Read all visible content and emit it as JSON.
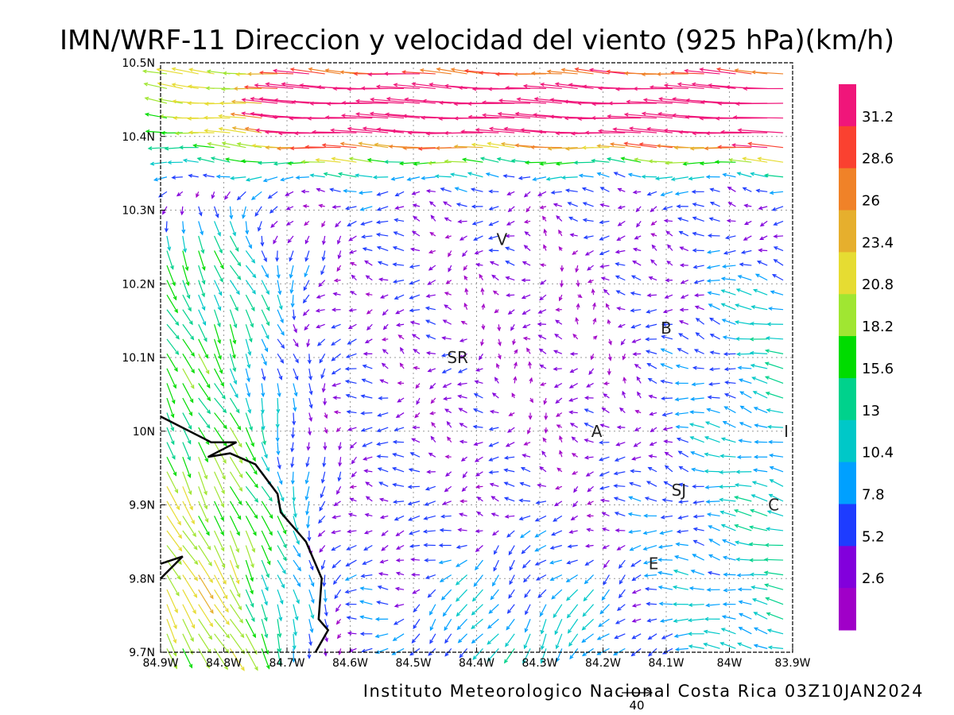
{
  "chart_data": {
    "type": "vector-field",
    "title": "IMN/WRF-11 Direccion y velocidad del viento (925 hPa)(km/h)",
    "x_ticks": [
      "84.9W",
      "84.8W",
      "84.7W",
      "84.6W",
      "84.5W",
      "84.4W",
      "84.3W",
      "84.2W",
      "84.1W",
      "84W",
      "83.9W"
    ],
    "y_ticks": [
      "10.5N",
      "10.4N",
      "10.3N",
      "10.2N",
      "10.1N",
      "10N",
      "9.9N",
      "9.8N",
      "9.7N"
    ],
    "xlim": [
      -84.9,
      -83.9
    ],
    "ylim": [
      9.7,
      10.5
    ],
    "grid": true,
    "colorbar": {
      "labels": [
        "31.2",
        "28.6",
        "26",
        "23.4",
        "20.8",
        "18.2",
        "15.6",
        "13",
        "10.4",
        "7.8",
        "5.2",
        "2.6"
      ],
      "colors": [
        "#f0167a",
        "#fa4130",
        "#f08228",
        "#e6af2d",
        "#e6dc32",
        "#a0e632",
        "#00dc00",
        "#00d28c",
        "#00c8c8",
        "#00a0ff",
        "#1e3cff",
        "#8200dc",
        "#a000c8"
      ]
    },
    "locations": [
      {
        "label": "V",
        "lon": -84.36,
        "lat": 10.26
      },
      {
        "label": "SR",
        "lon": -84.43,
        "lat": 10.1
      },
      {
        "label": "B",
        "lon": -84.1,
        "lat": 10.14
      },
      {
        "label": "A",
        "lon": -84.21,
        "lat": 10.0
      },
      {
        "label": "I",
        "lon": -83.91,
        "lat": 10.0
      },
      {
        "label": "SJ",
        "lon": -84.08,
        "lat": 9.92
      },
      {
        "label": "C",
        "lon": -83.93,
        "lat": 9.9
      },
      {
        "label": "E",
        "lon": -84.12,
        "lat": 9.82
      }
    ],
    "coastline": [
      {
        "lon": -84.9,
        "lat": 10.02
      },
      {
        "lon": -84.82,
        "lat": 9.985
      },
      {
        "lon": -84.78,
        "lat": 9.985
      },
      {
        "lon": -84.825,
        "lat": 9.965
      },
      {
        "lon": -84.79,
        "lat": 9.97
      },
      {
        "lon": -84.75,
        "lat": 9.955
      },
      {
        "lon": -84.715,
        "lat": 9.915
      },
      {
        "lon": -84.71,
        "lat": 9.89
      },
      {
        "lon": -84.67,
        "lat": 9.85
      },
      {
        "lon": -84.645,
        "lat": 9.8
      },
      {
        "lon": -84.65,
        "lat": 9.745
      },
      {
        "lon": -84.635,
        "lat": 9.73
      },
      {
        "lon": -84.655,
        "lat": 9.7
      }
    ],
    "coast_west_tip": [
      {
        "lon": -84.9,
        "lat": 9.82
      },
      {
        "lon": -84.865,
        "lat": 9.83
      },
      {
        "lon": -84.9,
        "lat": 9.8
      }
    ],
    "reference_vector": {
      "value": 40,
      "label": "40"
    }
  },
  "footer": "Instituto Meteorologico Nacional Costa Rica 03Z10JAN2024"
}
